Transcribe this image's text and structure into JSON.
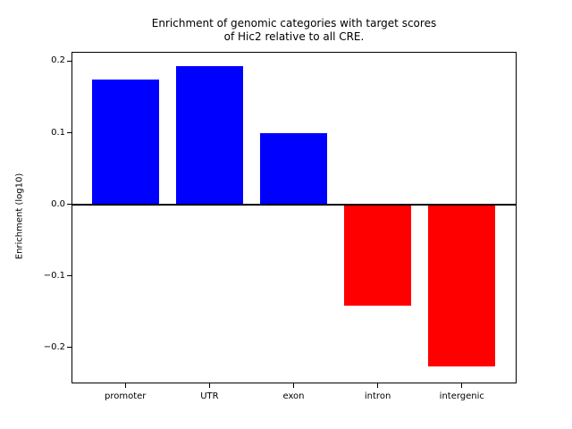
{
  "chart_data": {
    "type": "bar",
    "title": "Enrichment of genomic categories with target scores\nof Hic2 relative to all CRE.",
    "title_lines": [
      "Enrichment of genomic categories with target scores",
      "of Hic2 relative to all CRE."
    ],
    "xlabel": "",
    "ylabel": "Enrichment (log10)",
    "categories": [
      "promoter",
      "UTR",
      "exon",
      "intron",
      "intergenic"
    ],
    "values": [
      0.174,
      0.193,
      0.099,
      -0.142,
      -0.227
    ],
    "bar_width": 0.8,
    "xlim": [
      -0.64,
      4.64
    ],
    "ylim": [
      -0.249,
      0.213
    ],
    "yticks": [
      {
        "value": 0.2,
        "label": "0.2"
      },
      {
        "value": 0.1,
        "label": "0.1"
      },
      {
        "value": 0.0,
        "label": "0.0"
      },
      {
        "value": -0.1,
        "label": "−0.1"
      },
      {
        "value": -0.2,
        "label": "−0.2"
      }
    ],
    "zero_line": true,
    "grid": false,
    "legend": null,
    "colors": {
      "positive_bar": "#0000ff",
      "negative_bar": "#ff0000",
      "axis": "#000000",
      "background": "#ffffff",
      "text": "#000000"
    }
  }
}
